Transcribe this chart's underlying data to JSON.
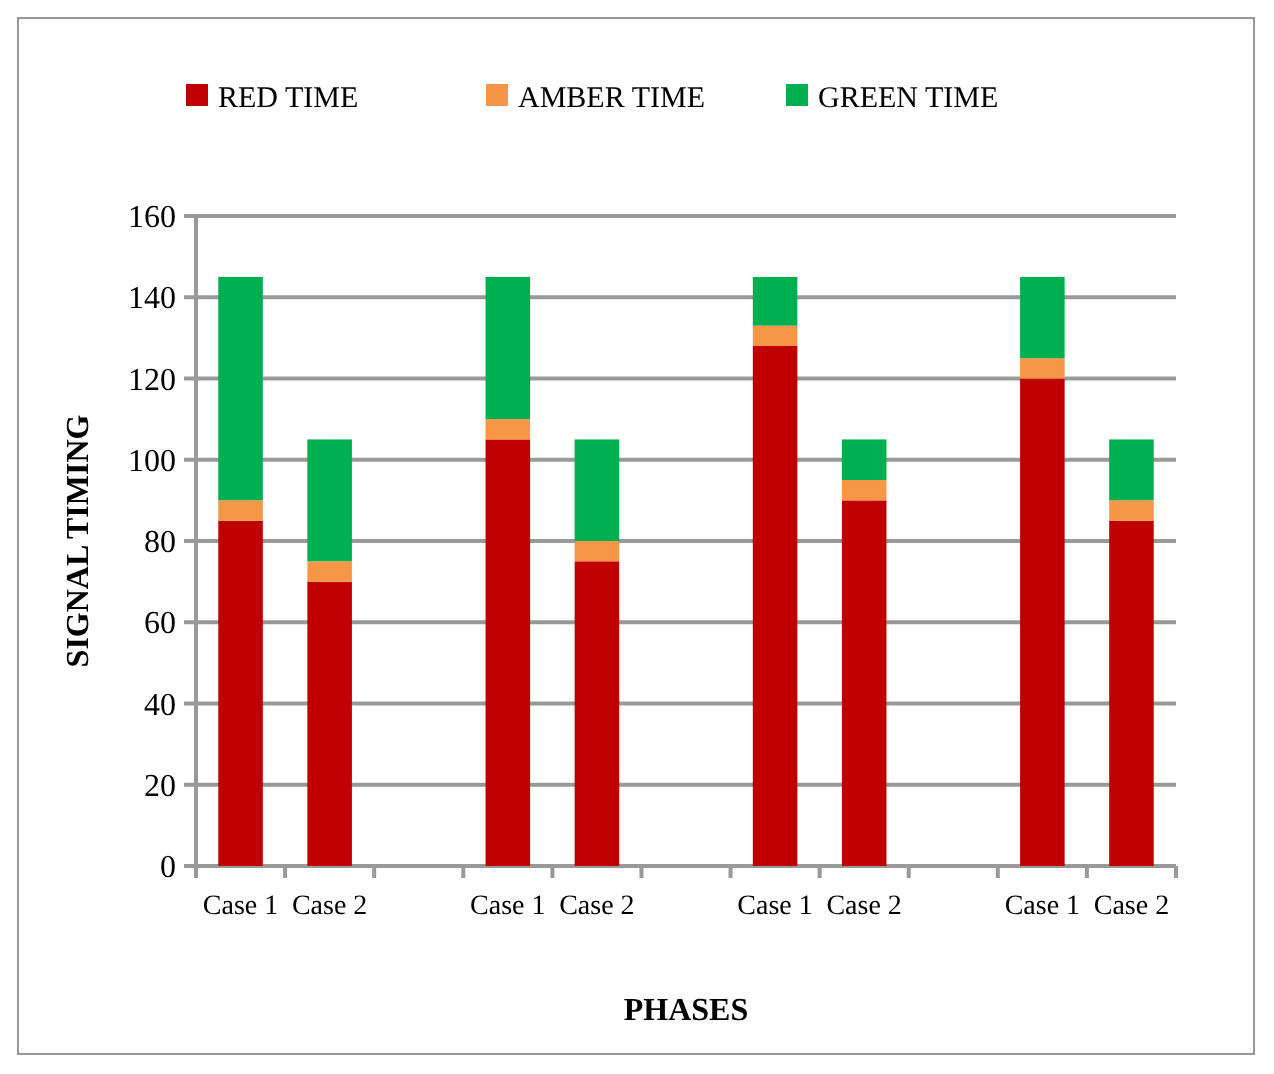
{
  "chart_data": {
    "type": "bar",
    "stacked": true,
    "xlabel": "PHASES",
    "ylabel": "SIGNAL TIMING",
    "categories": [
      "Case 1",
      "Case 2",
      null,
      "Case 1",
      "Case 2",
      null,
      "Case 1",
      "Case 2",
      null,
      "Case 1",
      "Case 2"
    ],
    "series": [
      {
        "name": "RED TIME",
        "color": "#c00000",
        "values": [
          85,
          70,
          null,
          105,
          75,
          null,
          128,
          90,
          null,
          120,
          85
        ]
      },
      {
        "name": "AMBER TIME",
        "color": "#f79646",
        "values": [
          5,
          5,
          null,
          5,
          5,
          null,
          5,
          5,
          null,
          5,
          5
        ]
      },
      {
        "name": "GREEN TIME",
        "color": "#00b050",
        "values": [
          55,
          30,
          null,
          35,
          25,
          null,
          12,
          10,
          null,
          20,
          15
        ]
      }
    ],
    "ylim": [
      0,
      160
    ],
    "yticks": [
      0,
      20,
      40,
      60,
      80,
      100,
      120,
      140,
      160
    ],
    "grid": "y",
    "legend": "top"
  }
}
